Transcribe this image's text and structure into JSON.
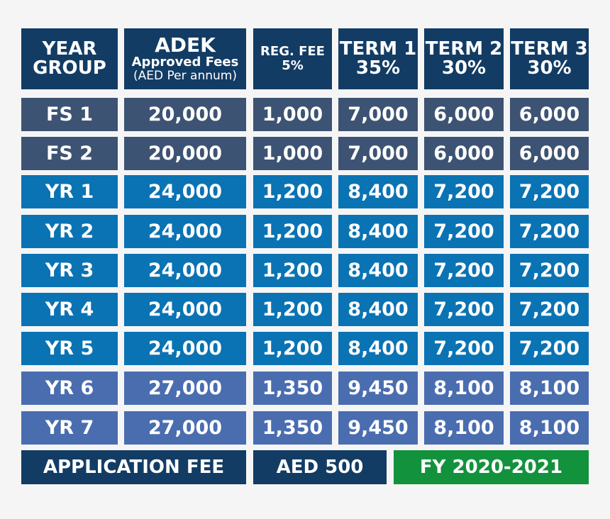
{
  "header": {
    "year_group": [
      "YEAR",
      "GROUP"
    ],
    "adek": [
      "ADEK",
      "Approved Fees",
      "(AED Per annum)"
    ],
    "reg_fee": [
      "REG. FEE",
      "5%"
    ],
    "term1": [
      "TERM 1",
      "35%"
    ],
    "term2": [
      "TERM 2",
      "30%"
    ],
    "term3": [
      "TERM 3",
      "30%"
    ]
  },
  "rows": [
    {
      "group": "FS 1",
      "adek": "20,000",
      "reg": "1,000",
      "t1": "7,000",
      "t2": "6,000",
      "t3": "6,000"
    },
    {
      "group": "FS 2",
      "adek": "20,000",
      "reg": "1,000",
      "t1": "7,000",
      "t2": "6,000",
      "t3": "6,000"
    },
    {
      "group": "YR 1",
      "adek": "24,000",
      "reg": "1,200",
      "t1": "8,400",
      "t2": "7,200",
      "t3": "7,200"
    },
    {
      "group": "YR 2",
      "adek": "24,000",
      "reg": "1,200",
      "t1": "8,400",
      "t2": "7,200",
      "t3": "7,200"
    },
    {
      "group": "YR 3",
      "adek": "24,000",
      "reg": "1,200",
      "t1": "8,400",
      "t2": "7,200",
      "t3": "7,200"
    },
    {
      "group": "YR 4",
      "adek": "24,000",
      "reg": "1,200",
      "t1": "8,400",
      "t2": "7,200",
      "t3": "7,200"
    },
    {
      "group": "YR 5",
      "adek": "24,000",
      "reg": "1,200",
      "t1": "8,400",
      "t2": "7,200",
      "t3": "7,200"
    },
    {
      "group": "YR 6",
      "adek": "27,000",
      "reg": "1,350",
      "t1": "9,450",
      "t2": "8,100",
      "t3": "8,100"
    },
    {
      "group": "YR 7",
      "adek": "27,000",
      "reg": "1,350",
      "t1": "9,450",
      "t2": "8,100",
      "t3": "8,100"
    }
  ],
  "footer": {
    "application_fee_label": "APPLICATION FEE",
    "application_fee_value": "AED 500",
    "fiscal_year": "FY  2020-2021"
  },
  "colors": {
    "header": "#123c64",
    "foundation_rows": "#3d5373",
    "year_rows_1_5": "#0a73b4",
    "year_rows_6_7": "#4a6db0",
    "fiscal_year_badge": "#12923c"
  }
}
